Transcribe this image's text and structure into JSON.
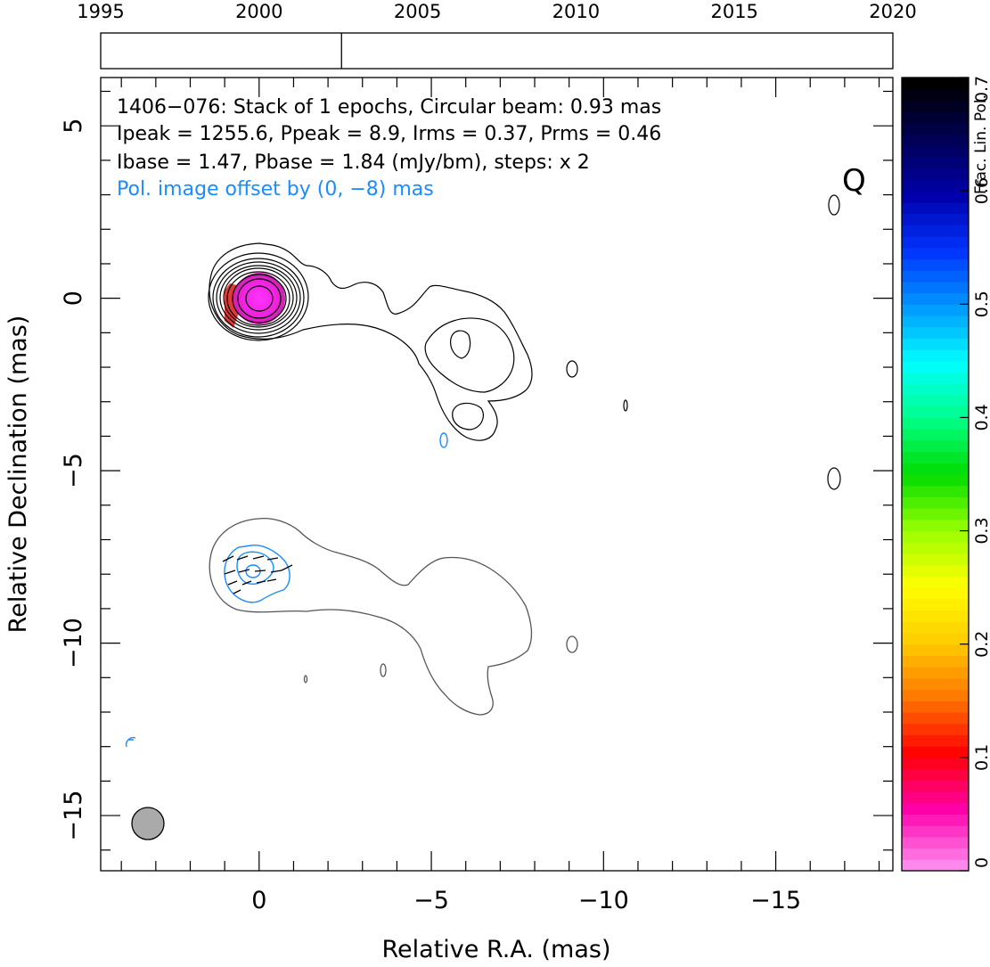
{
  "timeline": {
    "ticks": [
      "1995",
      "2000",
      "2005",
      "2010",
      "2015",
      "2020"
    ],
    "range": [
      1995,
      2020
    ],
    "epoch": 2002.6
  },
  "chart_data": {
    "type": "contour",
    "xlabel": "Relative R.A. (mas)",
    "ylabel": "Relative Declination (mas)",
    "xlim": [
      4.6,
      -18.4
    ],
    "ylim": [
      -16.6,
      6.4
    ],
    "xticks": [
      0,
      -5,
      -10,
      -15
    ],
    "yticks": [
      5,
      0,
      -5,
      -10,
      -15
    ],
    "x_minor_step": 1,
    "y_minor_step": 1,
    "stokes_label": "Q",
    "info_lines": [
      "1406−076: Stack of 1 epochs, Circular beam: 0.93 mas",
      "Ipeak = 1255.6, Ppeak = 8.9, Irms = 0.37, Prms = 0.46",
      "Ibase = 1.47, Pbase = 1.84 (mJy/bm), steps: x 2"
    ],
    "pol_offset_note": "Pol. image offset by (0, −8) mas",
    "beam": {
      "center": [
        3.2,
        -15.3
      ],
      "diameter_mas": 0.93
    },
    "core_position": [
      0,
      0
    ],
    "jet_direction": "south-west",
    "colorbar": {
      "label": "Frac. Lin. Pol.",
      "range": [
        0,
        0.7
      ],
      "ticks": [
        "0",
        "0.1",
        "0.2",
        "0.3",
        "0.4",
        "0.5",
        "0.6",
        "0.7"
      ],
      "stops": [
        "#ff88ee",
        "#ff00aa",
        "#ff0000",
        "#ff7700",
        "#ffcc00",
        "#ffff00",
        "#99ff00",
        "#00dd00",
        "#00ff88",
        "#00ffff",
        "#0099ff",
        "#0033ff",
        "#0000aa",
        "#000055",
        "#000000"
      ]
    },
    "colors": {
      "total_intensity": "#000000",
      "offset_intensity": "#555555",
      "polarization": "#1a8cff",
      "beam_fill": "#aaaaaa"
    }
  }
}
